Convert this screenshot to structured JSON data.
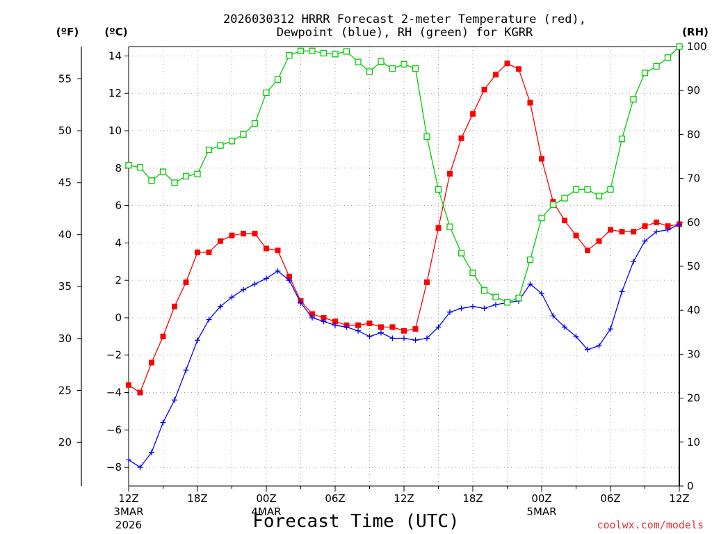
{
  "chart_data": {
    "type": "line",
    "title_line1": "2026030312 HRRR Forecast 2-meter Temperature (red),",
    "title_line2": "Dewpoint (blue), RH (green) for KGRR",
    "xlabel": "Forecast Time (UTC)",
    "credit": "coolwx.com/models",
    "left_unit_f": "(ºF)",
    "left_unit_c": "(ºC)",
    "right_unit": "(RH)",
    "x_range_hours": [
      0,
      48
    ],
    "ylim_c": [
      -9,
      14.5
    ],
    "ylim_rh": [
      0,
      100
    ],
    "yticks_c": [
      "14",
      "12",
      "10",
      "8",
      "6",
      "4",
      "2",
      "0",
      "−2",
      "−4",
      "−6",
      "−8"
    ],
    "yticks_f": [
      "55",
      "50",
      "45",
      "40",
      "35",
      "30",
      "25",
      "20"
    ],
    "yticks_rh": [
      "100",
      "90",
      "80",
      "70",
      "60",
      "50",
      "40",
      "30",
      "20",
      "10",
      "0"
    ],
    "xticks": [
      {
        "hour": 0,
        "label": "12Z",
        "sub1": "3MAR",
        "sub2": "2026"
      },
      {
        "hour": 6,
        "label": "18Z",
        "sub1": "",
        "sub2": ""
      },
      {
        "hour": 12,
        "label": "00Z",
        "sub1": "4MAR",
        "sub2": ""
      },
      {
        "hour": 18,
        "label": "06Z",
        "sub1": "",
        "sub2": ""
      },
      {
        "hour": 24,
        "label": "12Z",
        "sub1": "",
        "sub2": ""
      },
      {
        "hour": 30,
        "label": "18Z",
        "sub1": "",
        "sub2": ""
      },
      {
        "hour": 36,
        "label": "00Z",
        "sub1": "5MAR",
        "sub2": ""
      },
      {
        "hour": 42,
        "label": "06Z",
        "sub1": "",
        "sub2": ""
      },
      {
        "hour": 48,
        "label": "12Z",
        "sub1": "",
        "sub2": ""
      }
    ],
    "series": [
      {
        "name": "Temperature",
        "units": "C",
        "axis": "left",
        "color": "#ff0000",
        "marker": "filled-square",
        "values": [
          -3.6,
          -4.0,
          -2.4,
          -1.0,
          0.6,
          1.9,
          3.5,
          3.5,
          4.1,
          4.4,
          4.5,
          4.5,
          3.7,
          3.6,
          2.2,
          0.9,
          0.2,
          0.0,
          -0.2,
          -0.4,
          -0.4,
          -0.3,
          -0.5,
          -0.5,
          -0.7,
          -0.6,
          1.9,
          4.8,
          7.7,
          9.6,
          10.9,
          12.2,
          13.0,
          13.6,
          13.3,
          11.5,
          8.5,
          6.2,
          5.2,
          4.4,
          3.6,
          4.1,
          4.7,
          4.6,
          4.6,
          4.9,
          5.1,
          4.9,
          5.0
        ]
      },
      {
        "name": "Dewpoint",
        "units": "C",
        "axis": "left",
        "color": "#0000ff",
        "marker": "plus",
        "values": [
          -7.6,
          -8.0,
          -7.2,
          -5.6,
          -4.4,
          -2.8,
          -1.2,
          -0.1,
          0.6,
          1.1,
          1.5,
          1.8,
          2.1,
          2.5,
          2.0,
          0.8,
          0.0,
          -0.2,
          -0.4,
          -0.5,
          -0.7,
          -1.0,
          -0.8,
          -1.1,
          -1.1,
          -1.2,
          -1.1,
          -0.5,
          0.3,
          0.5,
          0.6,
          0.5,
          0.7,
          0.8,
          0.9,
          1.8,
          1.3,
          0.1,
          -0.5,
          -1.0,
          -1.7,
          -1.5,
          -0.6,
          1.4,
          3.0,
          4.1,
          4.6,
          4.7,
          5.0
        ]
      },
      {
        "name": "Relative Humidity",
        "units": "%",
        "axis": "right",
        "color": "#00cc00",
        "marker": "open-square",
        "values": [
          73,
          72.5,
          69.5,
          71.5,
          69,
          70.5,
          71,
          76.5,
          77.5,
          78.5,
          80,
          82.5,
          89.5,
          92.5,
          98,
          99,
          99,
          98.5,
          98.3,
          98.9,
          96.5,
          94.3,
          96.6,
          95,
          96,
          95,
          79.5,
          67.5,
          59,
          53,
          48.5,
          44.5,
          43,
          41.8,
          42.8,
          51.5,
          61,
          64,
          65.5,
          67.5,
          67.5,
          66,
          67.5,
          79,
          88,
          94,
          95.5,
          97.5,
          100
        ]
      }
    ]
  }
}
